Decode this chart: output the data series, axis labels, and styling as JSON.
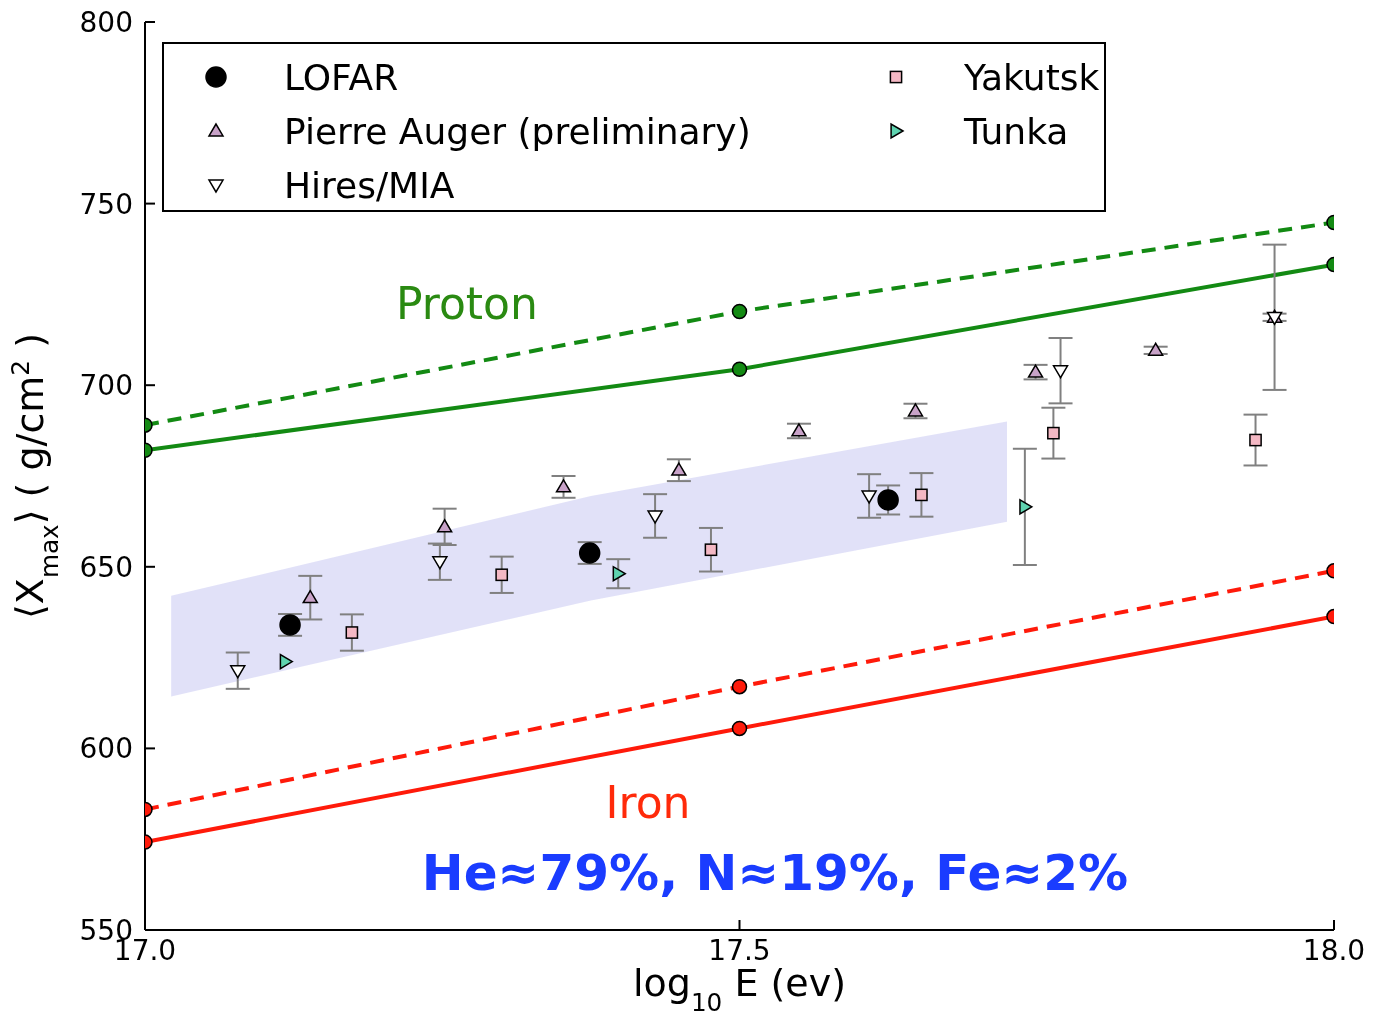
{
  "chart_data": {
    "type": "scatter",
    "xlabel": "log$_{10}$ E (ev)",
    "ylabel": "⟨X$_{max}$⟩ ( g/cm$^{2}$ )",
    "xlim": [
      17.0,
      18.0
    ],
    "xticks": [
      {
        "value": 17.0,
        "label": "17.0"
      },
      {
        "value": 17.5,
        "label": "17.5"
      },
      {
        "value": 18.0,
        "label": "18.0"
      }
    ],
    "ylim": [
      550,
      800
    ],
    "yticks": [
      550,
      600,
      650,
      700,
      750,
      800
    ],
    "grid": false,
    "legend": "top",
    "series": [
      {
        "name": "LOFAR",
        "marker": "circle",
        "color": "#000000",
        "x": [
          17.122,
          17.374,
          17.625
        ],
        "values": [
          634,
          653.8,
          668.4
        ],
        "errors": [
          3,
          3,
          4
        ]
      },
      {
        "name": "Pierre Auger (preliminary)",
        "marker": "triangle",
        "color": "#c8a2c8",
        "x": [
          17.139,
          17.252,
          17.352,
          17.449,
          17.55,
          17.648,
          17.749,
          17.85,
          17.95
        ],
        "values": [
          641.5,
          661,
          672,
          676.6,
          687.4,
          692.9,
          703.6,
          709.6,
          718.7
        ],
        "errors": [
          6,
          5,
          3,
          3,
          2,
          2,
          2,
          1,
          1
        ]
      },
      {
        "name": "Hires/MIA",
        "marker": "triangle-down",
        "color": "#ffffff",
        "x": [
          17.078,
          17.248,
          17.429,
          17.609,
          17.77,
          17.95
        ],
        "values": [
          621.4,
          651.4,
          664,
          669.5,
          704,
          718.7
        ],
        "errors": [
          5,
          5,
          6,
          6,
          9,
          20
        ]
      },
      {
        "name": "Yakutsk",
        "marker": "square",
        "color": "#f4b8c4",
        "x": [
          17.174,
          17.3,
          17.476,
          17.653,
          17.764,
          17.934
        ],
        "values": [
          631.9,
          647.8,
          654.7,
          669.8,
          686.8,
          684.9
        ],
        "errors": [
          5,
          5,
          6,
          6,
          7,
          7
        ]
      },
      {
        "name": "Tunka",
        "marker": "triangle-right",
        "color": "#5fd3b0",
        "x": [
          17.118,
          17.398,
          17.74
        ],
        "values": [
          623.9,
          648.1,
          666.5
        ],
        "errors": [
          null,
          4,
          16
        ]
      },
      {
        "type": "area",
        "color": "#dcdcf7",
        "x": [
          17.022,
          17.375,
          17.725
        ],
        "values": [
          null,
          null,
          null
        ],
        "lower": [
          614.3,
          640.7,
          662.4
        ],
        "upper": [
          642,
          669.5,
          690
        ]
      },
      {
        "type": "line",
        "marker": "circle",
        "line_style": "dashed",
        "color": "#138a13",
        "x": [
          17.0,
          17.5,
          18.0
        ],
        "values": [
          689,
          720.3,
          744.8
        ]
      },
      {
        "type": "line",
        "marker": "circle",
        "line_style": "solid",
        "color": "#138a13",
        "x": [
          17.0,
          17.5,
          18.0
        ],
        "values": [
          682.1,
          704.4,
          733.2
        ]
      },
      {
        "type": "line",
        "marker": "circle",
        "line_style": "dashed",
        "color": "#ff1a0a",
        "x": [
          17.0,
          17.5,
          18.0
        ],
        "values": [
          583.2,
          617,
          648.9
        ]
      },
      {
        "type": "line",
        "marker": "circle",
        "line_style": "solid",
        "color": "#ff1a0a",
        "x": [
          17.0,
          17.5,
          18.0
        ],
        "values": [
          574.2,
          605.5,
          636.3
        ]
      }
    ],
    "annotations": [
      "Proton",
      "Iron",
      "He≈79%, N≈19%, Fe≈2%"
    ]
  }
}
